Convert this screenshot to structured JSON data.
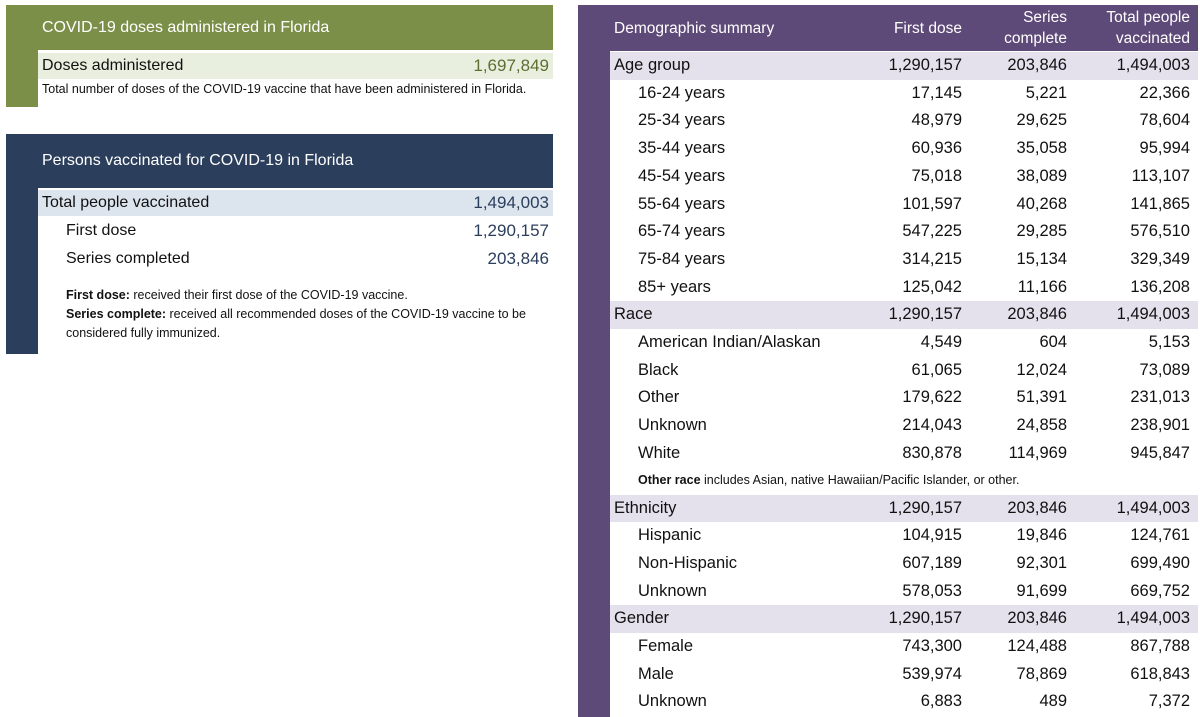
{
  "doses": {
    "title": "COVID-19 doses administered in Florida",
    "label": "Doses administered",
    "value": "1,697,849",
    "note": "Total number of doses of the COVID-19 vaccine that have been administered in Florida."
  },
  "persons": {
    "title": "Persons vaccinated for COVID-19 in Florida",
    "rows": [
      {
        "label": "Total people vaccinated",
        "value": "1,494,003"
      },
      {
        "label": "First dose",
        "value": "1,290,157"
      },
      {
        "label": "Series completed",
        "value": "203,846"
      }
    ],
    "def1_term": "First dose:",
    "def1_text": " received their first dose of the COVID-19 vaccine.",
    "def2_term": "Series complete:",
    "def2_text": " received all recommended doses of the COVID-19 vaccine to be considered fully immunized."
  },
  "demo": {
    "headers": [
      "Demographic summary",
      "First dose",
      "Series complete",
      "Total people vaccinated"
    ],
    "rows": [
      {
        "type": "cat",
        "label": "Age group",
        "v": [
          "1,290,157",
          "203,846",
          "1,494,003"
        ]
      },
      {
        "type": "sub",
        "label": "16-24 years",
        "v": [
          "17,145",
          "5,221",
          "22,366"
        ]
      },
      {
        "type": "sub",
        "label": "25-34 years",
        "v": [
          "48,979",
          "29,625",
          "78,604"
        ]
      },
      {
        "type": "sub",
        "label": "35-44 years",
        "v": [
          "60,936",
          "35,058",
          "95,994"
        ]
      },
      {
        "type": "sub",
        "label": "45-54 years",
        "v": [
          "75,018",
          "38,089",
          "113,107"
        ]
      },
      {
        "type": "sub",
        "label": "55-64 years",
        "v": [
          "101,597",
          "40,268",
          "141,865"
        ]
      },
      {
        "type": "sub",
        "label": "65-74 years",
        "v": [
          "547,225",
          "29,285",
          "576,510"
        ]
      },
      {
        "type": "sub",
        "label": "75-84 years",
        "v": [
          "314,215",
          "15,134",
          "329,349"
        ]
      },
      {
        "type": "sub",
        "label": "85+ years",
        "v": [
          "125,042",
          "11,166",
          "136,208"
        ]
      },
      {
        "type": "cat",
        "label": "Race",
        "v": [
          "1,290,157",
          "203,846",
          "1,494,003"
        ]
      },
      {
        "type": "sub",
        "label": "American Indian/Alaskan",
        "v": [
          "4,549",
          "604",
          "5,153"
        ]
      },
      {
        "type": "sub",
        "label": "Black",
        "v": [
          "61,065",
          "12,024",
          "73,089"
        ]
      },
      {
        "type": "sub",
        "label": "Other",
        "v": [
          "179,622",
          "51,391",
          "231,013"
        ]
      },
      {
        "type": "sub",
        "label": "Unknown",
        "v": [
          "214,043",
          "24,858",
          "238,901"
        ]
      },
      {
        "type": "sub",
        "label": "White",
        "v": [
          "830,878",
          "114,969",
          "945,847"
        ]
      },
      {
        "type": "note",
        "term": "Other race",
        "text": " includes Asian, native Hawaiian/Pacific Islander, or other."
      },
      {
        "type": "cat",
        "label": "Ethnicity",
        "v": [
          "1,290,157",
          "203,846",
          "1,494,003"
        ]
      },
      {
        "type": "sub",
        "label": "Hispanic",
        "v": [
          "104,915",
          "19,846",
          "124,761"
        ]
      },
      {
        "type": "sub",
        "label": "Non-Hispanic",
        "v": [
          "607,189",
          "92,301",
          "699,490"
        ]
      },
      {
        "type": "sub",
        "label": "Unknown",
        "v": [
          "578,053",
          "91,699",
          "669,752"
        ]
      },
      {
        "type": "cat",
        "label": "Gender",
        "v": [
          "1,290,157",
          "203,846",
          "1,494,003"
        ]
      },
      {
        "type": "sub",
        "label": "Female",
        "v": [
          "743,300",
          "124,488",
          "867,788"
        ]
      },
      {
        "type": "sub",
        "label": "Male",
        "v": [
          "539,974",
          "78,869",
          "618,843"
        ]
      },
      {
        "type": "sub",
        "label": "Unknown",
        "v": [
          "6,883",
          "489",
          "7,372"
        ]
      }
    ]
  },
  "colors": {
    "green": "#7b8f48",
    "navy": "#2b3e5c",
    "purple": "#5e4a78"
  }
}
